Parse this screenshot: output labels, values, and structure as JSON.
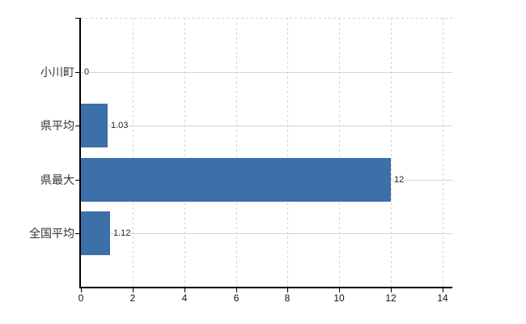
{
  "chart_data": {
    "type": "bar",
    "orientation": "horizontal",
    "title": "",
    "xlabel": "",
    "ylabel": "",
    "categories": [
      "小川町",
      "県平均",
      "県最大",
      "全国平均"
    ],
    "values": [
      0,
      1.03,
      12,
      1.12
    ],
    "data_labels": [
      "0",
      "1.03",
      "12",
      "1.12"
    ],
    "xlim": [
      0,
      14
    ],
    "x_ticks": [
      0,
      2,
      4,
      6,
      8,
      10,
      12,
      14
    ],
    "grid": true,
    "legend": false,
    "colors": {
      "bar": "#3d6fa9",
      "grid": "#d4d4d4",
      "axis": "#000000",
      "data_label": "#222222",
      "tick_label": "#111111",
      "category_label": "#333333",
      "background": "#ffffff"
    }
  }
}
